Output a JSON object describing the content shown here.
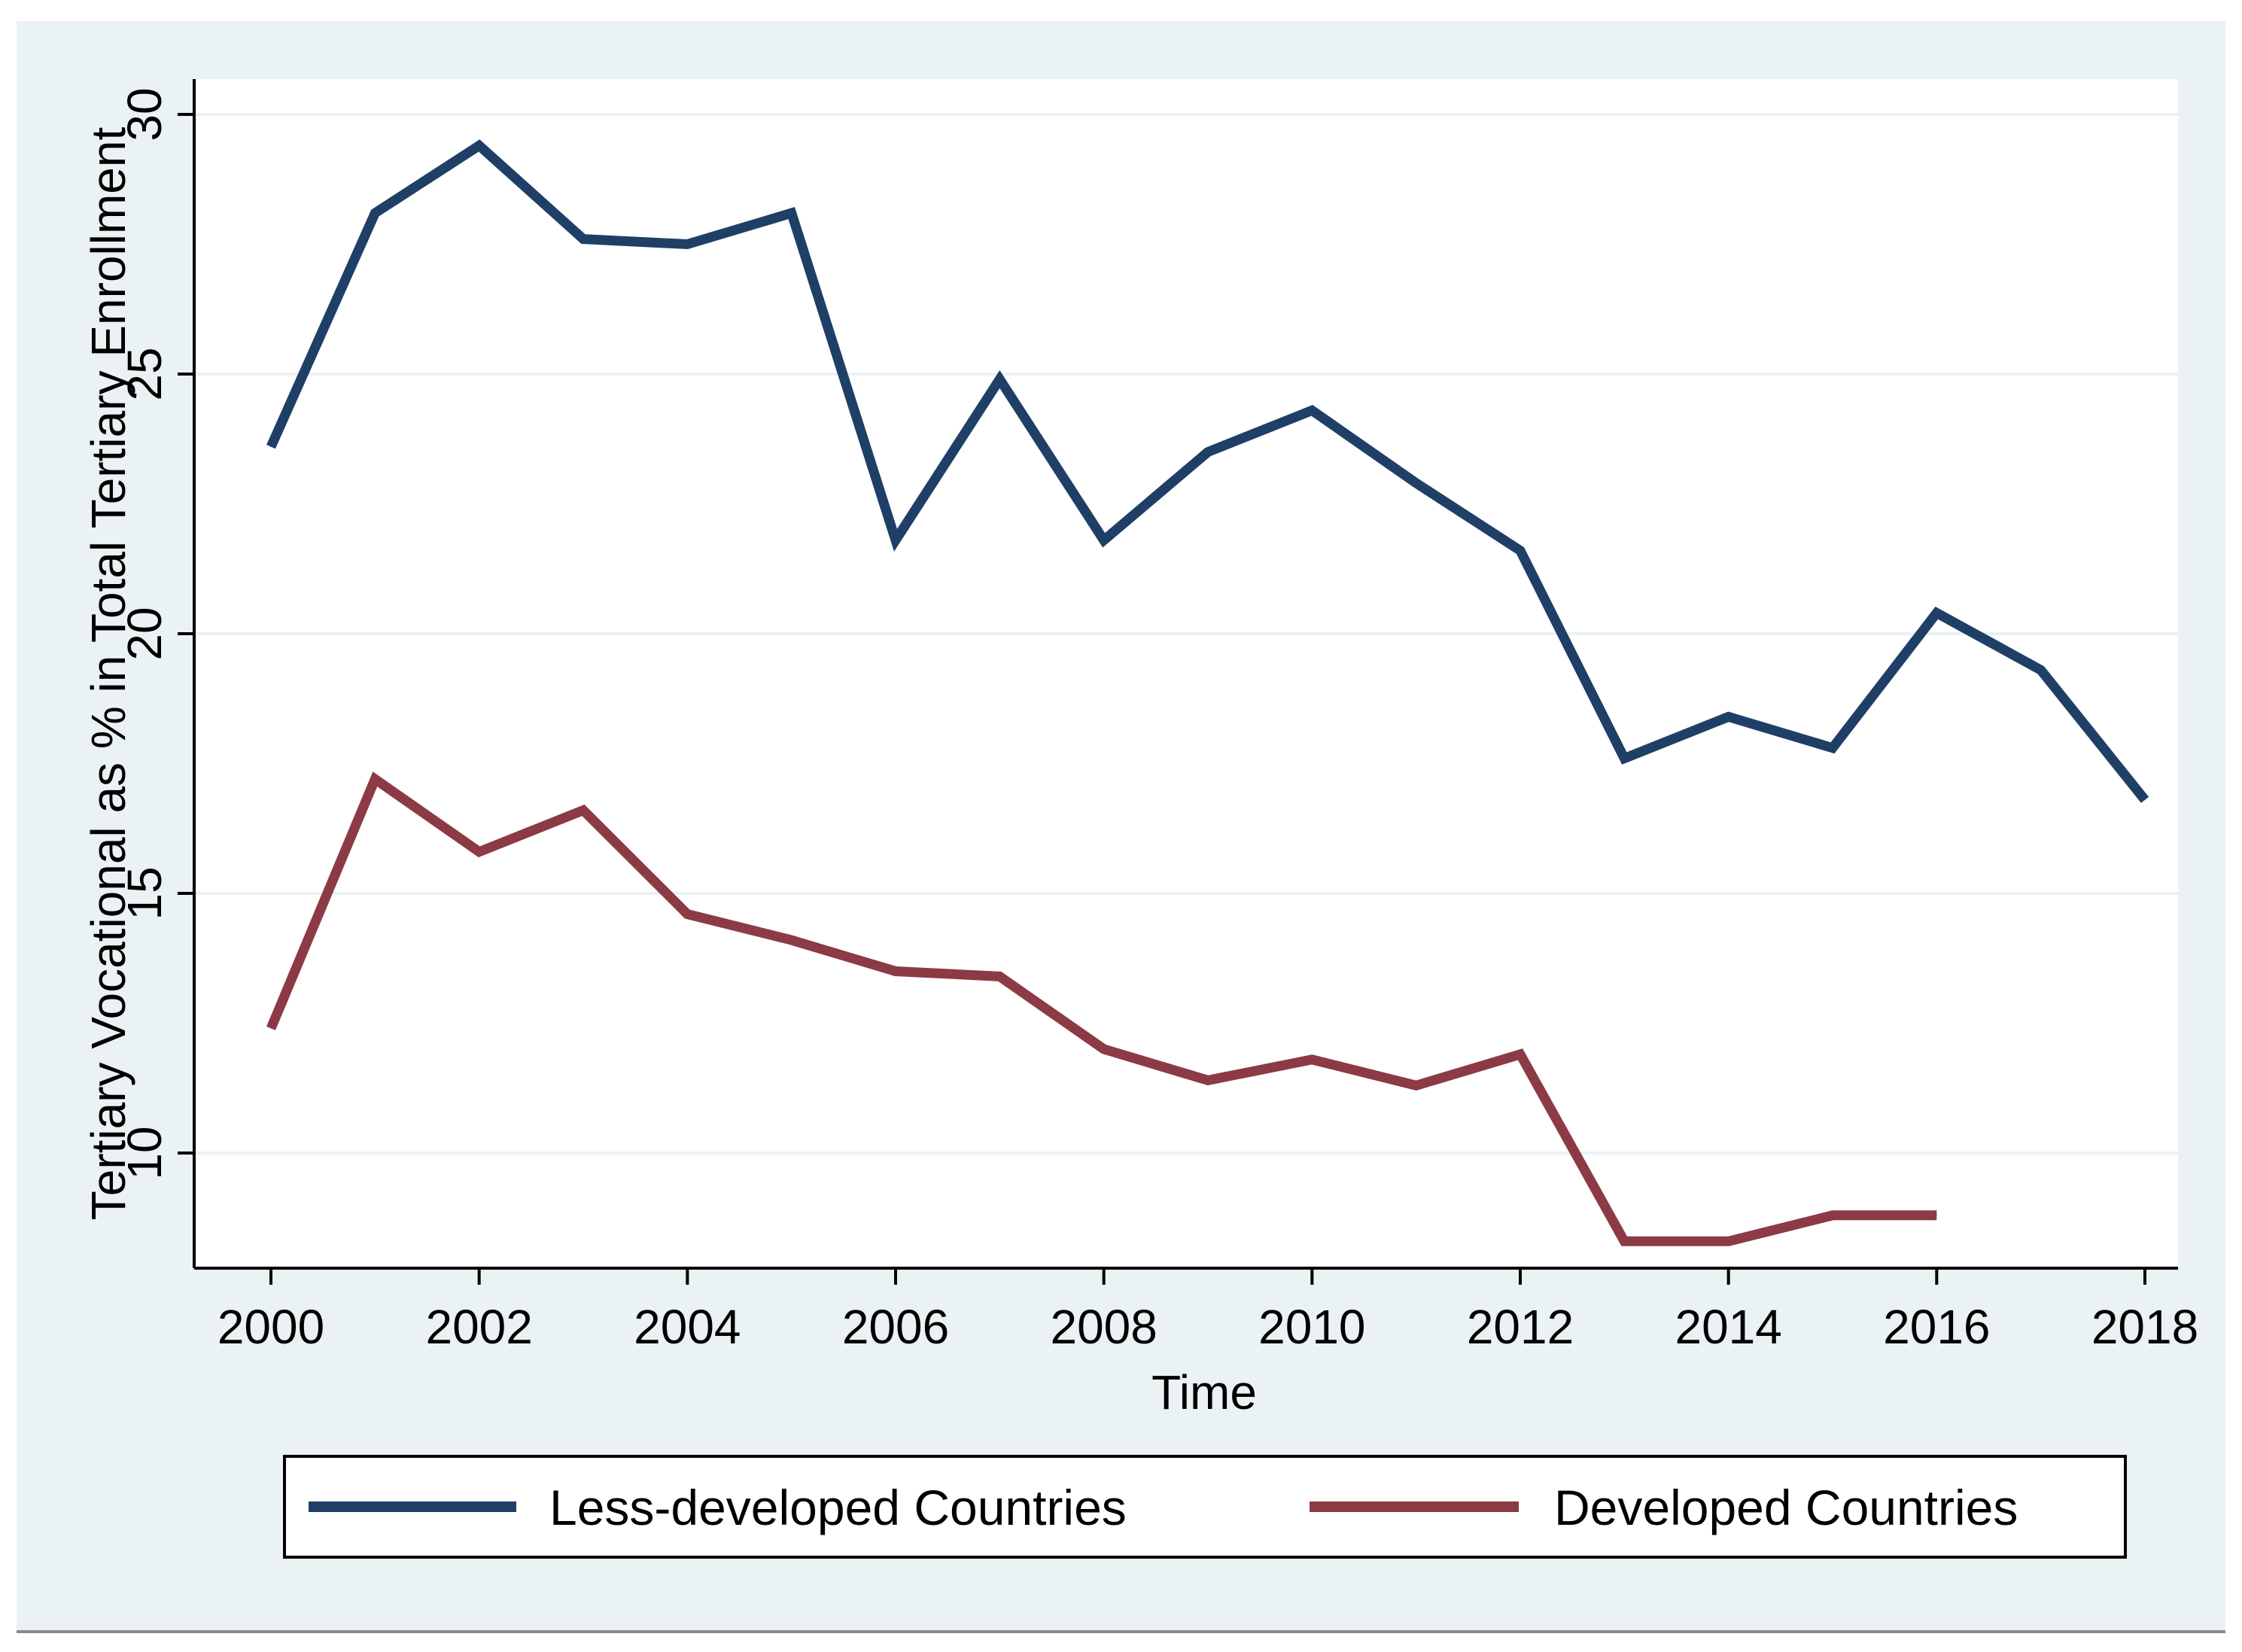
{
  "chart_data": {
    "type": "line",
    "title": "",
    "xlabel": "Time",
    "ylabel": "Tertiary Vocational as % in Total Tertiary Enrollment",
    "xlim": [
      2000,
      2018
    ],
    "ylim": [
      7.7,
      30.7
    ],
    "x_ticks": [
      2000,
      2002,
      2004,
      2006,
      2008,
      2010,
      2012,
      2014,
      2016,
      2018
    ],
    "x_tick_labels": [
      "2000",
      "2002",
      "2004",
      "2006",
      "2008",
      "2010",
      "2012",
      "2014",
      "2016",
      "2018"
    ],
    "y_ticks": [
      10,
      15,
      20,
      25,
      30
    ],
    "y_tick_labels": [
      "10",
      "15",
      "20",
      "25",
      "30"
    ],
    "grid": true,
    "legend_position": "bottom",
    "series": [
      {
        "name": "Less-developed Countries",
        "color": "#1f3f66",
        "x": [
          2000,
          2001,
          2002,
          2003,
          2004,
          2005,
          2006,
          2007,
          2008,
          2009,
          2010,
          2011,
          2012,
          2013,
          2014,
          2015,
          2016,
          2017,
          2018
        ],
        "values": [
          23.6,
          28.1,
          29.4,
          27.6,
          27.5,
          28.1,
          21.8,
          24.9,
          21.8,
          23.5,
          24.3,
          22.9,
          21.6,
          17.6,
          18.4,
          17.8,
          20.4,
          19.3,
          16.8
        ]
      },
      {
        "name": "Developed Countries",
        "color": "#8c3a44",
        "x": [
          2000,
          2001,
          2002,
          2003,
          2004,
          2005,
          2006,
          2007,
          2008,
          2009,
          2010,
          2011,
          2012,
          2013,
          2014,
          2015,
          2016
        ],
        "values": [
          12.4,
          17.2,
          15.8,
          16.6,
          14.6,
          14.1,
          13.5,
          13.4,
          12.0,
          11.4,
          11.8,
          11.3,
          11.9,
          8.3,
          8.3,
          8.8,
          8.8
        ]
      }
    ]
  }
}
